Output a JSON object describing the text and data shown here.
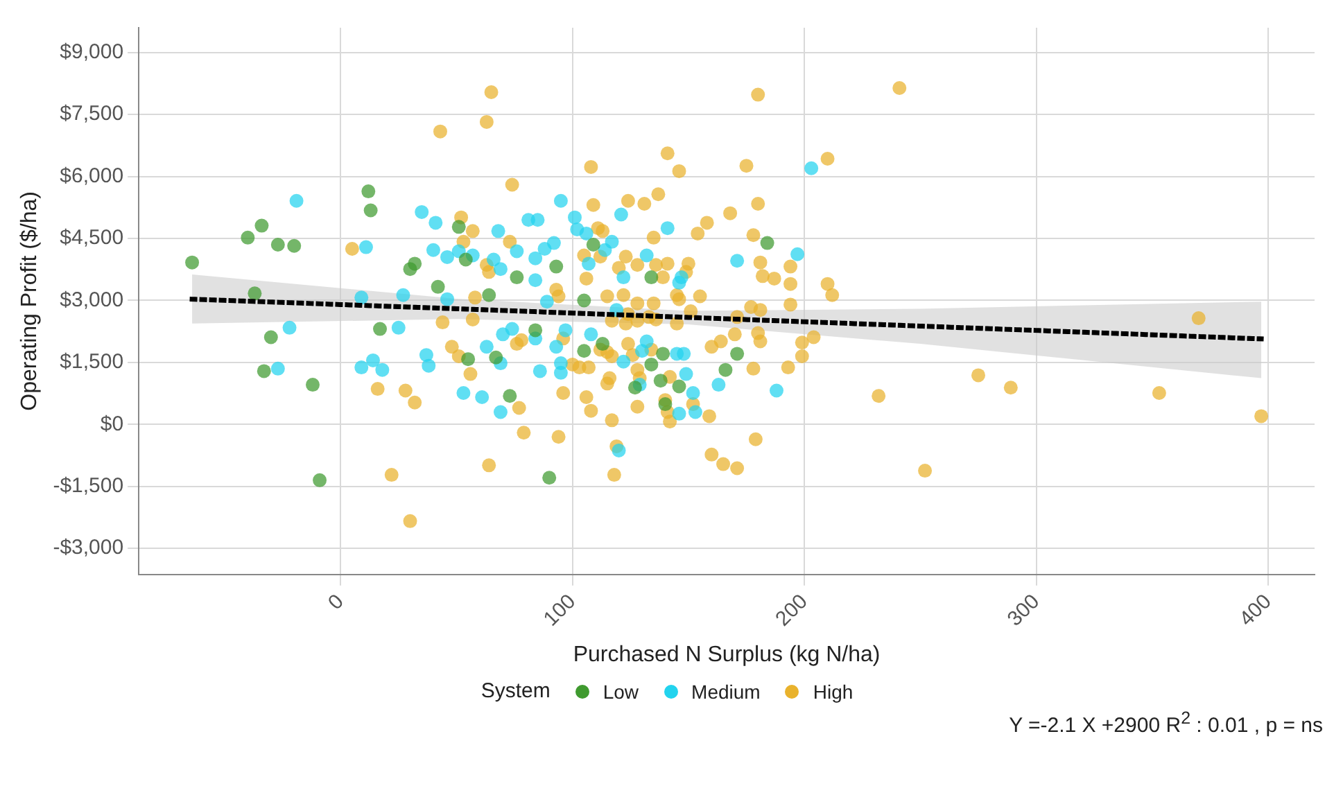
{
  "chart_data": {
    "type": "scatter",
    "xlabel": "Purchased N Surplus (kg N/ha)",
    "ylabel": "Operating Profit ($/ha)",
    "legend_title": "System",
    "legend": "bottom",
    "grid": true,
    "marker": "circle",
    "xlim": [
      -87,
      420
    ],
    "xticks": [
      0,
      100,
      200,
      300,
      400
    ],
    "ylim": [
      -3630,
      9600
    ],
    "yticks": [
      {
        "value": -3000,
        "label": "-$3,000"
      },
      {
        "value": -1500,
        "label": "-$1,500"
      },
      {
        "value": 0,
        "label": "$0"
      },
      {
        "value": 1500,
        "label": "$1,500"
      },
      {
        "value": 3000,
        "label": "$3,000"
      },
      {
        "value": 4500,
        "label": "$4,500"
      },
      {
        "value": 6000,
        "label": "$6,000"
      },
      {
        "value": 7500,
        "label": "$7,500"
      },
      {
        "value": 9000,
        "label": "$9,000"
      }
    ],
    "annotations": [
      "Y =-2.1 X +2900 R$^{2}$ : 0.01 , p = ns"
    ],
    "series": [
      {
        "name": "Low",
        "color": "#3f9a2f",
        "x": [
          -64,
          -40,
          -34,
          -27,
          -20,
          -30,
          -33,
          -12,
          -9,
          12,
          13,
          32,
          30,
          17,
          42,
          51,
          54,
          64,
          76,
          55,
          67,
          73,
          84,
          90,
          -37,
          93,
          109,
          105,
          134,
          184,
          105,
          113,
          139,
          134,
          127,
          138,
          146,
          140,
          171,
          166
        ],
        "values": [
          3920,
          4520,
          4810,
          4350,
          4320,
          2110,
          1290,
          960,
          -1350,
          5640,
          5180,
          3890,
          3760,
          2310,
          3330,
          4780,
          3990,
          3130,
          3560,
          1580,
          1620,
          690,
          2280,
          -1290,
          3170,
          3820,
          4350,
          3000,
          3560,
          4390,
          1780,
          1950,
          1710,
          1450,
          890,
          1060,
          920,
          490,
          1710,
          1320
        ]
      },
      {
        "name": "Medium",
        "color": "#22d3ee",
        "x": [
          -19,
          -22,
          -27,
          11,
          9,
          14,
          18,
          25,
          9,
          27,
          35,
          41,
          40,
          46,
          51,
          57,
          68,
          76,
          66,
          69,
          81,
          85,
          84,
          84,
          37,
          38,
          63,
          69,
          70,
          74,
          53,
          61,
          69,
          84,
          86,
          46,
          95,
          101,
          102,
          106,
          117,
          114,
          92,
          88,
          107,
          121,
          122,
          132,
          141,
          146,
          147,
          171,
          197,
          203,
          89,
          108,
          93,
          97,
          113,
          119,
          122,
          130,
          132,
          129,
          95,
          95,
          145,
          148,
          149,
          152,
          146,
          153,
          163,
          188,
          120
        ],
        "values": [
          5410,
          2340,
          1350,
          4290,
          1380,
          1550,
          1320,
          2340,
          3070,
          3130,
          5140,
          4880,
          4220,
          4050,
          4190,
          4090,
          4680,
          4190,
          3990,
          3760,
          4950,
          4950,
          4020,
          3490,
          1680,
          1420,
          1880,
          1480,
          2180,
          2310,
          760,
          660,
          300,
          2080,
          1290,
          3030,
          5410,
          5010,
          4720,
          4620,
          4420,
          4220,
          4390,
          4250,
          3890,
          5080,
          3560,
          4090,
          4750,
          3430,
          3560,
          3960,
          4120,
          6200,
          2970,
          2180,
          1880,
          2280,
          null,
          2770,
          1520,
          1780,
          2010,
          960,
          1480,
          1250,
          1710,
          1710,
          1220,
          760,
          260,
          300,
          960,
          820,
          -630
        ]
      },
      {
        "name": "High",
        "color": "#e9b22c",
        "x": [
          65,
          63,
          43,
          74,
          5,
          52,
          57,
          53,
          73,
          63,
          64,
          58,
          44,
          57,
          48,
          51,
          56,
          76,
          78,
          16,
          28,
          32,
          77,
          79,
          64,
          22,
          30,
          180,
          241,
          141,
          146,
          175,
          108,
          210,
          137,
          124,
          131,
          109,
          180,
          168,
          158,
          154,
          178,
          111,
          113,
          135,
          105,
          112,
          123,
          120,
          128,
          136,
          141,
          150,
          149,
          106,
          139,
          181,
          182,
          187,
          194,
          194,
          210,
          212,
          93,
          94,
          115,
          122,
          128,
          135,
          145,
          146,
          155,
          194,
          177,
          181,
          124,
          128,
          117,
          123,
          133,
          136,
          151,
          145,
          171,
          96,
          112,
          115,
          117,
          124,
          126,
          134,
          160,
          164,
          170,
          180,
          181,
          199,
          204,
          199,
          100,
          103,
          107,
          128,
          129,
          116,
          115,
          142,
          152,
          178,
          193,
          96,
          106,
          108,
          128,
          117,
          140,
          141,
          142,
          159,
          94,
          179,
          119,
          160,
          165,
          171,
          118,
          232,
          252,
          275,
          289,
          353,
          397,
          370
        ],
        "values": [
          8040,
          7320,
          7090,
          5800,
          4250,
          5010,
          4680,
          4420,
          4420,
          3860,
          3690,
          3070,
          2470,
          2540,
          1880,
          1650,
          1220,
          1950,
          2040,
          860,
          820,
          530,
          400,
          -200,
          -990,
          -1220,
          -2340,
          7980,
          8140,
          6560,
          6130,
          6260,
          6230,
          6430,
          5570,
          5410,
          5340,
          5310,
          5340,
          5110,
          4880,
          4620,
          4580,
          4750,
          4680,
          4520,
          4090,
          4060,
          4060,
          3790,
          3860,
          3860,
          3890,
          3890,
          3690,
          3530,
          3560,
          3920,
          3590,
          3530,
          3820,
          3400,
          3400,
          3130,
          3260,
          3100,
          3100,
          3130,
          2930,
          2930,
          3130,
          3030,
          3100,
          2900,
          2840,
          2770,
          2670,
          2510,
          2510,
          2440,
          2600,
          2540,
          2740,
          2440,
          2600,
          2080,
          1810,
          1750,
          1650,
          1950,
          1680,
          1810,
          1880,
          2010,
          2180,
          2210,
          2010,
          1980,
          2110,
          1650,
          1450,
          1380,
          1380,
          1320,
          1120,
          1120,
          990,
          1150,
          490,
          1350,
          1380,
          760,
          660,
          330,
          430,
          100,
          590,
          300,
          70,
          200,
          -300,
          -360,
          -530,
          -730,
          -960,
          -1060,
          -1220,
          690,
          -1120,
          1190,
          890,
          760,
          200,
          2570
        ]
      },
      {
        "type": "line",
        "color": "#000000",
        "line_style": "dotted",
        "marker": "none",
        "x": [
          -64,
          50,
          150,
          250,
          397
        ],
        "values": [
          3030,
          2800,
          2590,
          2380,
          2070
        ],
        "lower": [
          2440,
          2550,
          2420,
          1950,
          1120
        ],
        "upper": [
          3630,
          3040,
          2750,
          2800,
          2970
        ]
      }
    ]
  }
}
